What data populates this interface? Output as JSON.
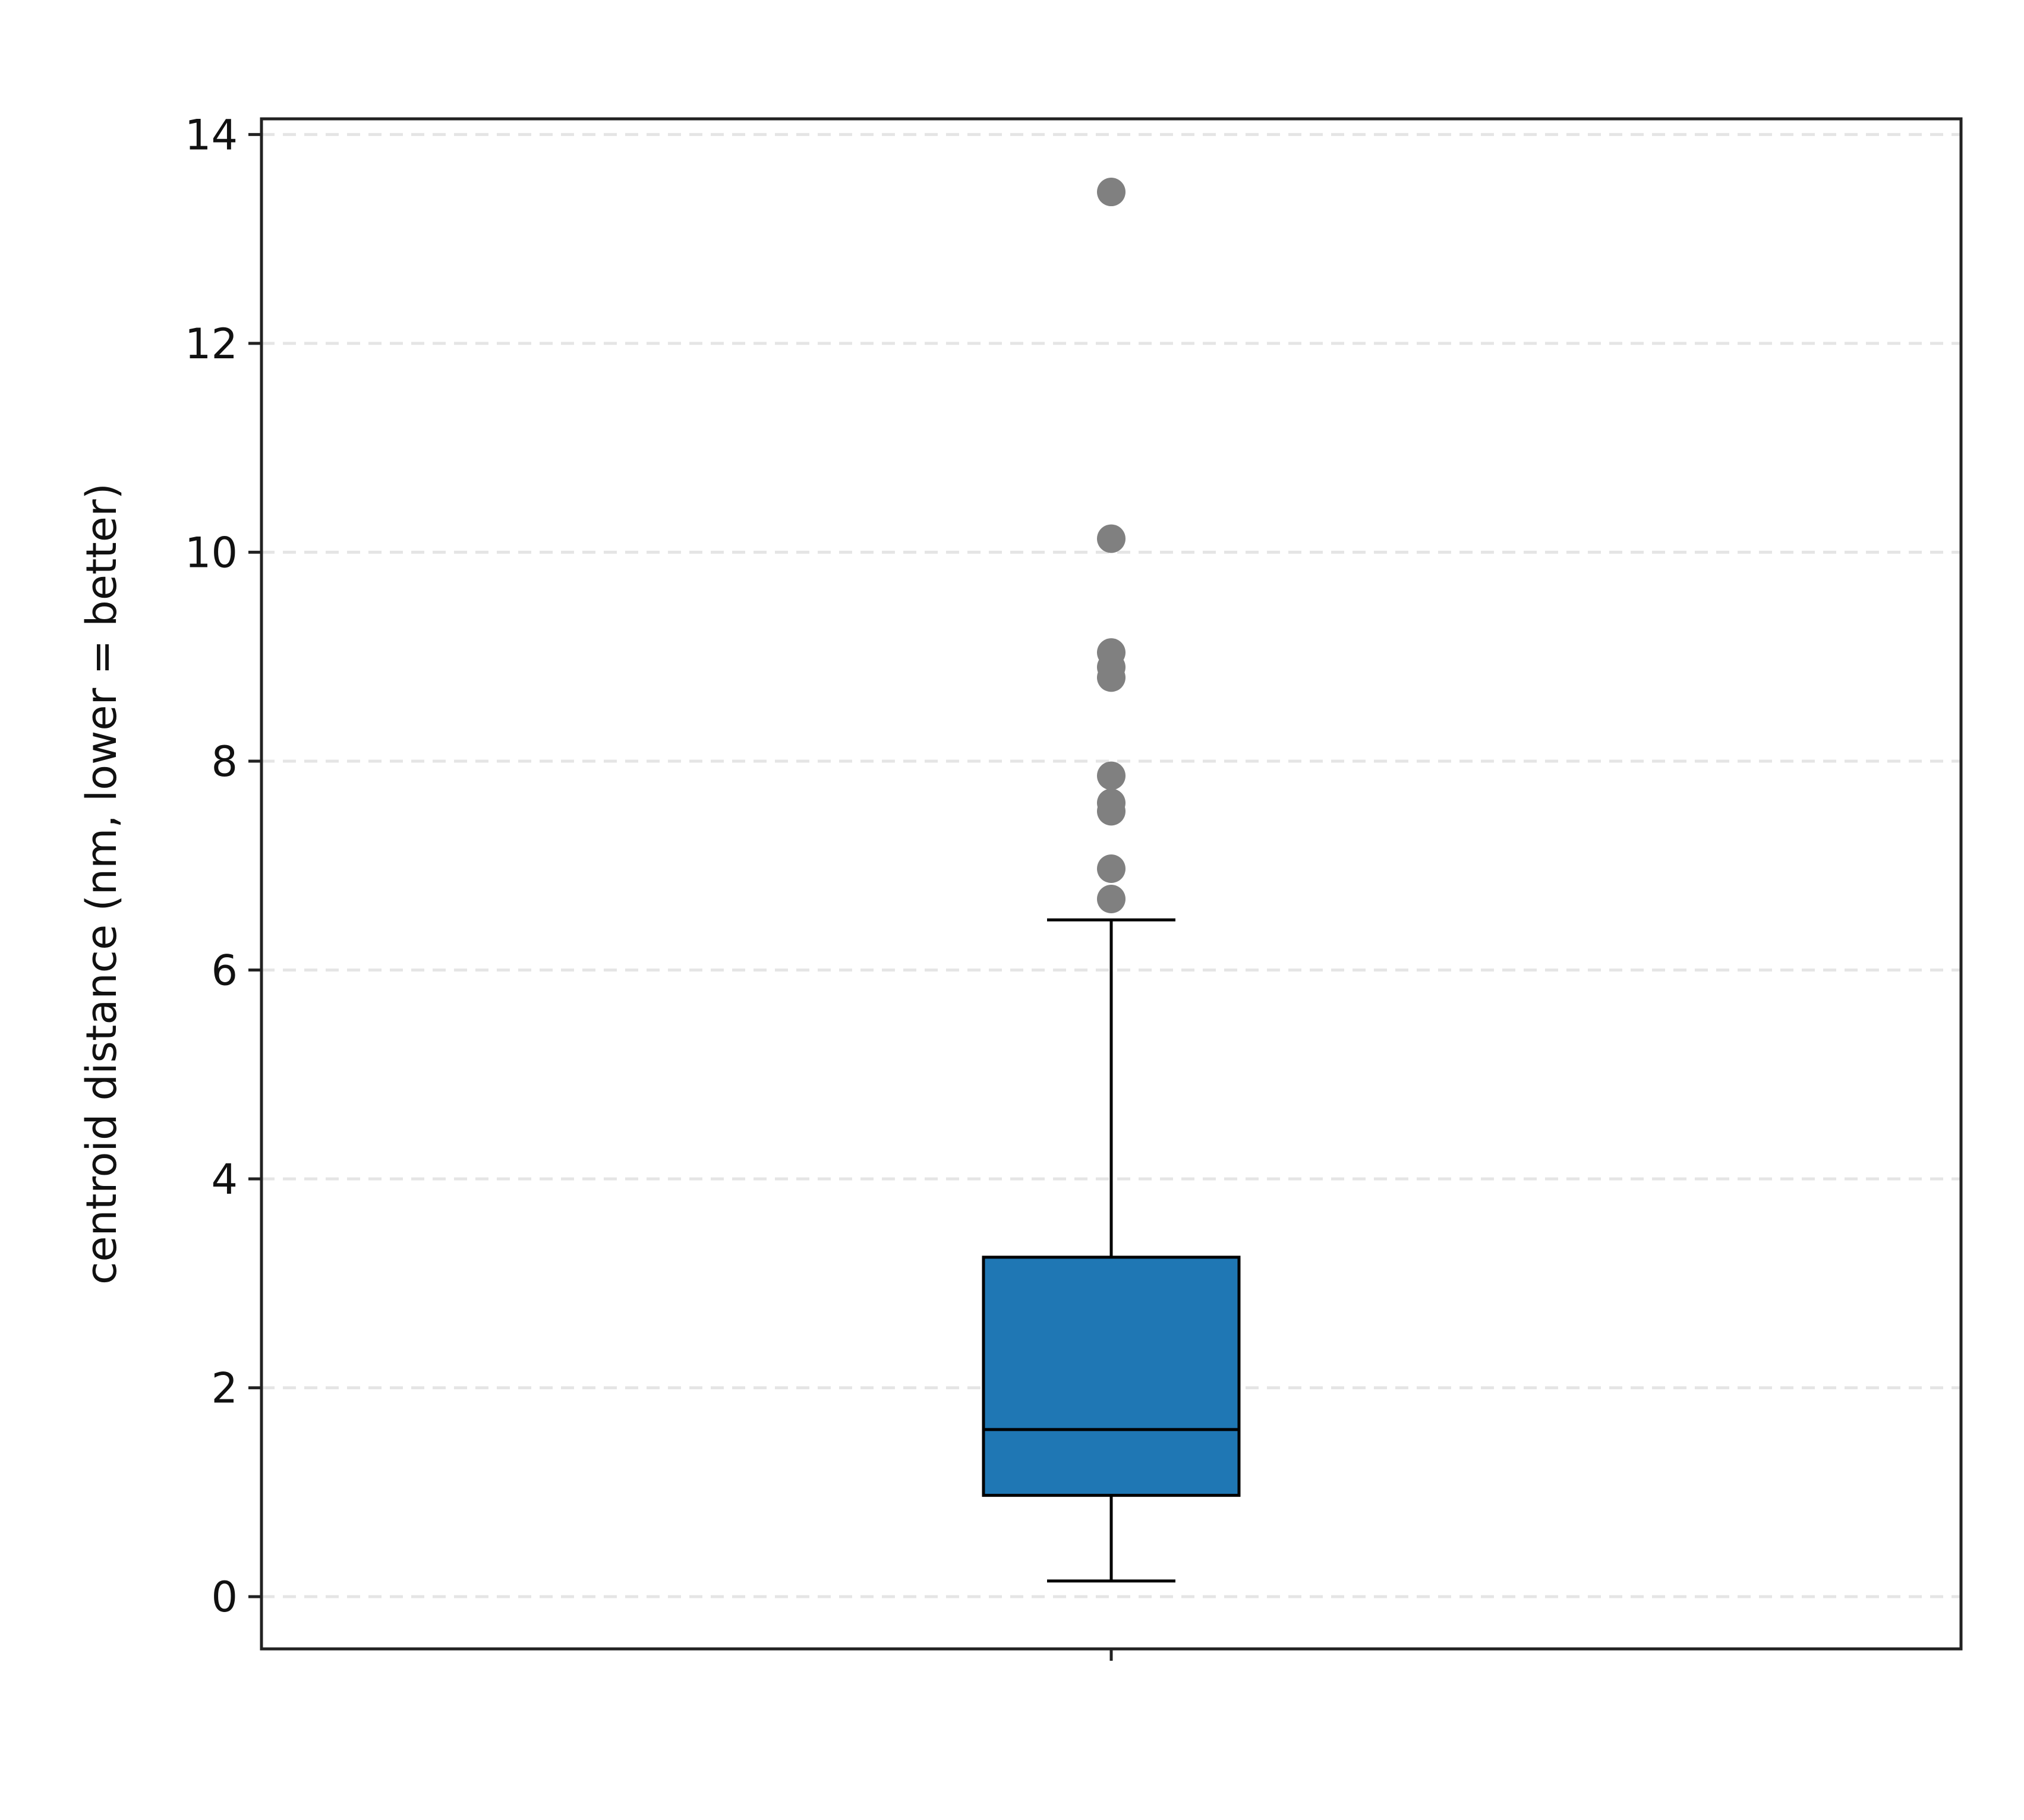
{
  "chart_data": {
    "type": "box",
    "title": "",
    "xlabel": "",
    "ylabel": "centroid distance (nm, lower = better)",
    "ylim": [
      -0.5,
      14.15
    ],
    "yticks": [
      0,
      2,
      4,
      6,
      8,
      10,
      12,
      14
    ],
    "grid": "y",
    "legend": "none",
    "boxes": [
      {
        "whisker_low": 0.15,
        "q1": 0.97,
        "median": 1.6,
        "q3": 3.25,
        "whisker_high": 6.48,
        "outliers": [
          6.68,
          6.97,
          7.52,
          7.6,
          7.86,
          8.8,
          8.9,
          9.04,
          10.13,
          13.45
        ]
      }
    ],
    "colors": {
      "box_fill": "#1f77b4",
      "outlier": "#808080",
      "grid": "#e5e5e5",
      "axis": "#222222"
    }
  }
}
